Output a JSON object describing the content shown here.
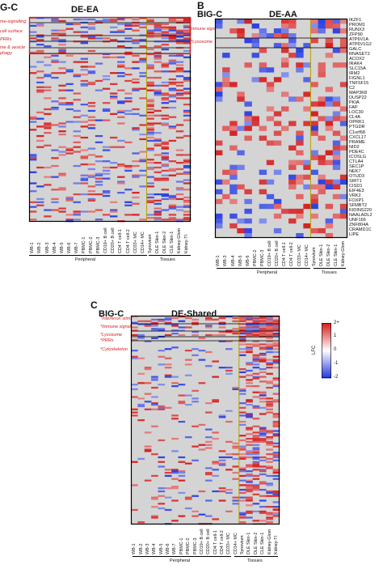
{
  "chart_data": [
    {
      "panel": "",
      "prefix": "G-C",
      "title": "DE-EA",
      "type": "heatmap",
      "annotations": [
        "me-signalling",
        "cell surface",
        "PRRs",
        "me & vesicle",
        "phagy"
      ],
      "x": [
        "WB-1",
        "WB-2",
        "WB-3",
        "WB-4",
        "WB-5",
        "WB-6",
        "WB-7",
        "PBMC-1",
        "PBMC-2",
        "PBMC-3",
        "CD19+ B cell",
        "CD20+ B cell",
        "CD4 T cell-1",
        "CD4 T cell-2",
        "CD33+ MC",
        "CD14+ MC",
        "Synovium",
        "DLE Skin-1",
        "DLE Skin-2",
        "CLE Skin-1",
        "Kidney-Glom",
        "Kidney-TI"
      ],
      "groups": [
        "Peripheral",
        "Tissues"
      ]
    },
    {
      "panel": "B",
      "prefix": "BIG-C",
      "title": "DE-AA",
      "type": "heatmap",
      "annotations": [
        "*Immune signaling",
        "*Lysosome"
      ],
      "genes": [
        "IKZF1",
        "PROM1",
        "RUNX3",
        "ZFP90",
        "ATP6V1A",
        "ATP6V1G2",
        "GALC",
        "RNASET2",
        "ACOX2",
        "IRAK4",
        "SLC15A",
        "IRM2",
        "FIGNL1",
        "TNFSF15",
        "C2",
        "MAP3K8",
        "DUSP22",
        "PKIA",
        "FAP",
        "LOC30",
        "CL4A",
        "OPRK1",
        "PTGDR",
        "C1orf68",
        "CXCL17",
        "PRAME",
        "NID2",
        "PDE4C",
        "ICOSLG",
        "CTLA4",
        "SEC1P",
        "NEK7",
        "OTUD3",
        "SIRT1",
        "CISD1",
        "EIF4E3",
        "VRK2",
        "FOXP1",
        "SFMBT2",
        "KIDINS220",
        "NAALADL2",
        "UNF166",
        "ZNF804A",
        "CRAMD1C",
        "LIPE"
      ],
      "x": [
        "WB-1",
        "WB-3",
        "WB-4",
        "WB-5",
        "WB-6",
        "PBMC-2",
        "PBMC-3",
        "CD19+ B cell",
        "CD20+ B cell",
        "CD4 T cell-1",
        "CD4 T cell-2",
        "CD33+ MC",
        "CD14+ MC",
        "Synovium",
        "DLE Skin-1",
        "DLE Skin-2",
        "CLE Skin-1",
        "Kidney-Glom"
      ],
      "groups": [
        "Peripheral",
        "Tissues"
      ]
    },
    {
      "panel": "C",
      "prefix": "BIG-C",
      "title": "DE-Shared",
      "type": "heatmap",
      "annotations": [
        "*Interferon stim. genes",
        "*Immune signaling",
        "*Lysosome",
        "*PRRs",
        "*Cytoskeleton"
      ],
      "x": [
        "WB-1",
        "WB-2",
        "WB-3",
        "WB-4",
        "WB-5",
        "WB-6",
        "WB-7",
        "PBMC-1",
        "PBMC-2",
        "PBMC-3",
        "CD19+ B cell",
        "CD20+ B cell",
        "CD4 T cell-1",
        "CD4 T cell-2",
        "CD33+ MC",
        "CD14+ MC",
        "Synovium",
        "DLE Skin-1",
        "DLE Skin-2",
        "CLE Skin-1",
        "Kidney-Glom",
        "Kidney-TI"
      ],
      "groups": [
        "Peripheral",
        "Tissues"
      ],
      "legend": {
        "title": "LFC",
        "ticks": [
          "2+",
          "1",
          "0",
          "-1",
          "-2"
        ],
        "range": [
          -2,
          2
        ]
      }
    }
  ],
  "colors": {
    "high": "#d42020",
    "low": "#2a3ee0",
    "neutral": "#d4d4d4",
    "annotation": "#d42020",
    "tissue_sep": "#b8a000"
  }
}
